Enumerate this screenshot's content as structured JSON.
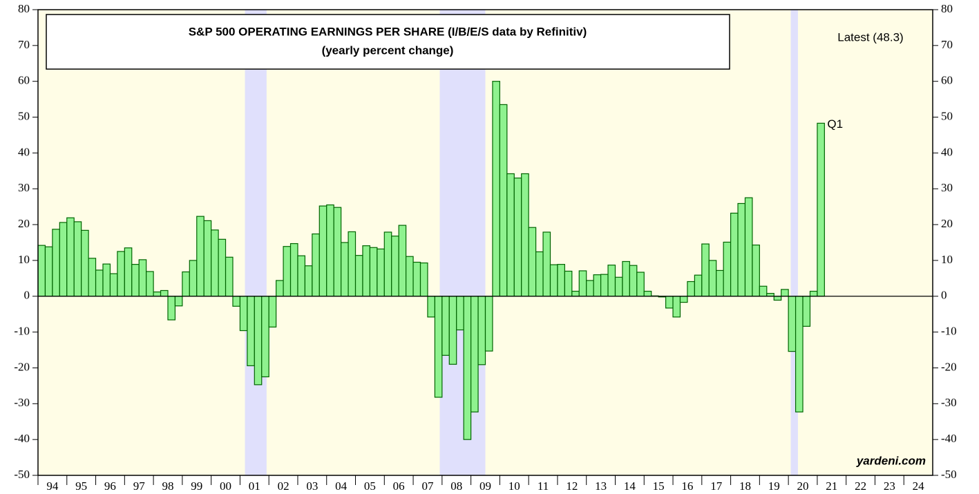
{
  "chart_data": {
    "type": "bar",
    "title": "S&P 500 OPERATING EARNINGS PER SHARE (I/B/E/S data by Refinitiv)",
    "subtitle": "(yearly percent change)",
    "annotations": {
      "latest": "Latest (48.3)",
      "last_point": "Q1",
      "source": "yardeni.com"
    },
    "color": "#8ff28f",
    "edge_color": "#006400",
    "background": "#fffde6",
    "shade_color": "#e0e0fc",
    "shaded_periods": [
      [
        2001.17,
        2001.92
      ],
      [
        2007.92,
        2009.5
      ],
      [
        2020.08,
        2020.33
      ]
    ],
    "x": [
      1994,
      1994.25,
      1994.5,
      1994.75,
      1995,
      1995.25,
      1995.5,
      1995.75,
      1996,
      1996.25,
      1996.5,
      1996.75,
      1997,
      1997.25,
      1997.5,
      1997.75,
      1998,
      1998.25,
      1998.5,
      1998.75,
      1999,
      1999.25,
      1999.5,
      1999.75,
      2000,
      2000.25,
      2000.5,
      2000.75,
      2001,
      2001.25,
      2001.5,
      2001.75,
      2002,
      2002.25,
      2002.5,
      2002.75,
      2003,
      2003.25,
      2003.5,
      2003.75,
      2004,
      2004.25,
      2004.5,
      2004.75,
      2005,
      2005.25,
      2005.5,
      2005.75,
      2006,
      2006.25,
      2006.5,
      2006.75,
      2007,
      2007.25,
      2007.5,
      2007.75,
      2008,
      2008.25,
      2008.5,
      2008.75,
      2009,
      2009.25,
      2009.5,
      2009.75,
      2010,
      2010.25,
      2010.5,
      2010.75,
      2011,
      2011.25,
      2011.5,
      2011.75,
      2012,
      2012.25,
      2012.5,
      2012.75,
      2013,
      2013.25,
      2013.5,
      2013.75,
      2014,
      2014.25,
      2014.5,
      2014.75,
      2015,
      2015.25,
      2015.5,
      2015.75,
      2016,
      2016.25,
      2016.5,
      2016.75,
      2017,
      2017.25,
      2017.5,
      2017.75,
      2018,
      2018.25,
      2018.5,
      2018.75,
      2019,
      2019.25,
      2019.5,
      2019.75,
      2020,
      2020.25,
      2020.5,
      2020.75,
      2021
    ],
    "values": [
      14.2,
      13.8,
      18.7,
      20.6,
      21.9,
      20.8,
      18.4,
      10.6,
      7.3,
      9.0,
      6.3,
      12.5,
      13.5,
      8.9,
      10.2,
      6.9,
      1.2,
      1.6,
      -6.6,
      -2.7,
      6.8,
      10.0,
      22.3,
      21.1,
      18.5,
      15.9,
      10.9,
      -2.8,
      -9.6,
      -19.4,
      -24.7,
      -22.5,
      -8.6,
      4.4,
      13.9,
      14.7,
      11.3,
      8.5,
      17.4,
      25.2,
      25.5,
      24.8,
      15.0,
      18.0,
      11.4,
      14.1,
      13.6,
      13.2,
      17.9,
      16.8,
      19.8,
      11.1,
      9.5,
      9.3,
      -5.8,
      -28.2,
      -16.5,
      -19.0,
      -9.4,
      -40.0,
      -32.3,
      -19.1,
      -15.3,
      60.0,
      53.5,
      34.2,
      33.0,
      34.2,
      19.2,
      12.4,
      17.9,
      8.8,
      8.9,
      7.0,
      1.4,
      7.1,
      4.4,
      6.0,
      6.1,
      8.7,
      5.3,
      9.7,
      8.6,
      6.7,
      1.4,
      0.1,
      -0.2,
      -3.3,
      -5.8,
      -1.7,
      4.1,
      5.9,
      14.6,
      10.0,
      7.2,
      15.1,
      23.2,
      25.9,
      27.5,
      14.3,
      2.8,
      0.8,
      -1.1,
      1.9,
      -15.4,
      -32.3,
      -8.4,
      1.4,
      48.3
    ],
    "xlim": [
      1994,
      2025
    ],
    "xticks": [
      {
        "value": 1994,
        "label": "94"
      },
      {
        "value": 1995,
        "label": "95"
      },
      {
        "value": 1996,
        "label": "96"
      },
      {
        "value": 1997,
        "label": "97"
      },
      {
        "value": 1998,
        "label": "98"
      },
      {
        "value": 1999,
        "label": "99"
      },
      {
        "value": 2000,
        "label": "00"
      },
      {
        "value": 2001,
        "label": "01"
      },
      {
        "value": 2002,
        "label": "02"
      },
      {
        "value": 2003,
        "label": "03"
      },
      {
        "value": 2004,
        "label": "04"
      },
      {
        "value": 2005,
        "label": "05"
      },
      {
        "value": 2006,
        "label": "06"
      },
      {
        "value": 2007,
        "label": "07"
      },
      {
        "value": 2008,
        "label": "08"
      },
      {
        "value": 2009,
        "label": "09"
      },
      {
        "value": 2010,
        "label": "10"
      },
      {
        "value": 2011,
        "label": "11"
      },
      {
        "value": 2012,
        "label": "12"
      },
      {
        "value": 2013,
        "label": "13"
      },
      {
        "value": 2014,
        "label": "14"
      },
      {
        "value": 2015,
        "label": "15"
      },
      {
        "value": 2016,
        "label": "16"
      },
      {
        "value": 2017,
        "label": "17"
      },
      {
        "value": 2018,
        "label": "18"
      },
      {
        "value": 2019,
        "label": "19"
      },
      {
        "value": 2020,
        "label": "20"
      },
      {
        "value": 2021,
        "label": "21"
      },
      {
        "value": 2022,
        "label": "22"
      },
      {
        "value": 2023,
        "label": "23"
      },
      {
        "value": 2024,
        "label": "24"
      }
    ],
    "ylim": [
      -50,
      80
    ],
    "yticks": [
      -50,
      -40,
      -30,
      -20,
      -10,
      0,
      10,
      20,
      30,
      40,
      50,
      60,
      70,
      80
    ]
  }
}
